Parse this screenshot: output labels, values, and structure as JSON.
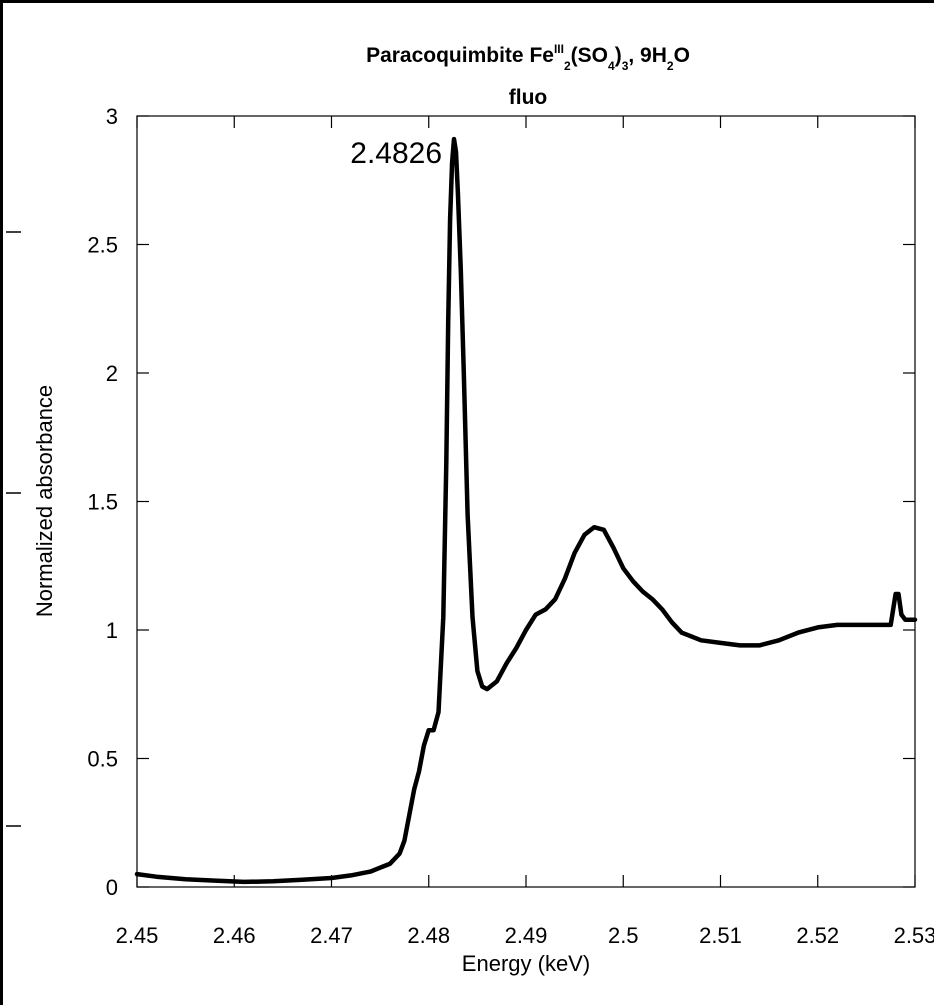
{
  "chart_data": {
    "type": "line",
    "title": {
      "prefix": "Paracoquimbite Fe",
      "sup": "III",
      "parts": [
        {
          "t": "",
          "sub": "2"
        },
        {
          "t": "(SO",
          "sub": "4"
        },
        {
          "t": ")",
          "sub": "3"
        },
        {
          "t": ", 9H",
          "sub": "2"
        },
        {
          "t": "O",
          "sub": ""
        }
      ],
      "plain": "Paracoquimbite FeIII2(SO4)3, 9H2O"
    },
    "subtitle": "fluo",
    "xlabel": "Energy (keV)",
    "ylabel": "Normalized absorbance",
    "xlim": [
      2.45,
      2.53
    ],
    "ylim": [
      0,
      3
    ],
    "xticks": [
      "2.45",
      "2.46",
      "2.47",
      "2.48",
      "2.49",
      "2.5",
      "2.51",
      "2.52",
      "2.53"
    ],
    "yticks": [
      "0",
      "0.5",
      "1",
      "1.5",
      "2",
      "2.5",
      "3"
    ],
    "grid": false,
    "annotations": [
      {
        "text": "2.4826",
        "x": 2.4826,
        "y": 2.91
      }
    ],
    "series": [
      {
        "color": "#000000",
        "x": [
          2.45,
          2.452,
          2.455,
          2.458,
          2.461,
          2.464,
          2.467,
          2.47,
          2.472,
          2.474,
          2.475,
          2.476,
          2.477,
          2.4775,
          2.478,
          2.4785,
          2.479,
          2.4795,
          2.48,
          2.4805,
          2.481,
          2.4815,
          2.4818,
          2.482,
          2.4822,
          2.4824,
          2.4826,
          2.4828,
          2.483,
          2.4833,
          2.4836,
          2.484,
          2.4845,
          2.485,
          2.4855,
          2.486,
          2.487,
          2.488,
          2.489,
          2.49,
          2.491,
          2.492,
          2.493,
          2.494,
          2.495,
          2.496,
          2.497,
          2.498,
          2.499,
          2.5,
          2.501,
          2.502,
          2.503,
          2.504,
          2.505,
          2.506,
          2.508,
          2.51,
          2.512,
          2.514,
          2.516,
          2.518,
          2.52,
          2.522,
          2.524,
          2.526,
          2.5275,
          2.528,
          2.5283,
          2.5286,
          2.529,
          2.5295,
          2.53
        ],
        "y": [
          0.05,
          0.04,
          0.03,
          0.025,
          0.02,
          0.022,
          0.028,
          0.035,
          0.045,
          0.06,
          0.075,
          0.09,
          0.13,
          0.18,
          0.28,
          0.38,
          0.45,
          0.55,
          0.61,
          0.61,
          0.68,
          1.05,
          1.65,
          2.2,
          2.6,
          2.82,
          2.91,
          2.86,
          2.7,
          2.4,
          2.0,
          1.45,
          1.05,
          0.84,
          0.78,
          0.77,
          0.8,
          0.87,
          0.93,
          1.0,
          1.06,
          1.08,
          1.12,
          1.2,
          1.3,
          1.37,
          1.4,
          1.39,
          1.32,
          1.24,
          1.19,
          1.15,
          1.12,
          1.08,
          1.03,
          0.99,
          0.96,
          0.95,
          0.94,
          0.94,
          0.96,
          0.99,
          1.01,
          1.02,
          1.02,
          1.02,
          1.02,
          1.14,
          1.14,
          1.06,
          1.04,
          1.04,
          1.04
        ]
      }
    ]
  }
}
